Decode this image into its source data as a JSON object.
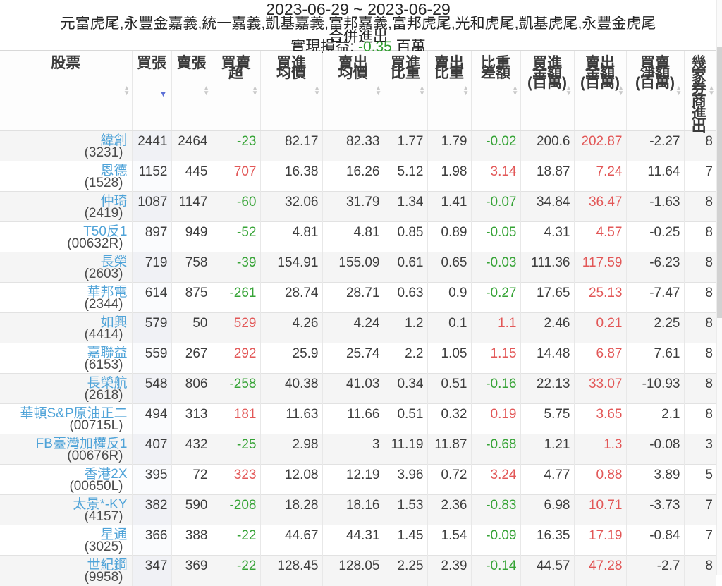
{
  "header": {
    "date_range": "2023-06-29 ~ 2023-06-29",
    "broker_list": "元富虎尾,永豐金嘉義,統一嘉義,凱基嘉義,富邦嘉義,富邦虎尾,光和虎尾,凱基虎尾,永豐金虎尾",
    "mode_label": "合併進出",
    "pnl_label": "實現損益:",
    "pnl_value": "-0.35",
    "pnl_unit": "百萬"
  },
  "colors": {
    "positive_red": "#e25757",
    "negative_green": "#36a336",
    "stock_link_blue": "#4fa3d8",
    "sort_active_blue": "#5b6fd6",
    "pnl_green": "#2f9e2f"
  },
  "sort_state": {
    "column": "buy_lots",
    "direction": "desc"
  },
  "table": {
    "columns": [
      {
        "id": "stock",
        "label": "股票",
        "lines": [
          "股票"
        ],
        "vertical": false
      },
      {
        "id": "buy_lots",
        "label": "買張",
        "lines": [
          "買張"
        ],
        "vertical": false
      },
      {
        "id": "sell_lots",
        "label": "賣張",
        "lines": [
          "賣張"
        ],
        "vertical": false
      },
      {
        "id": "net_lots",
        "label": "買賣超",
        "lines": [
          "買賣",
          "超"
        ],
        "vertical": false
      },
      {
        "id": "avg_buy_price",
        "label": "買進均價",
        "lines": [
          "買進",
          "均價"
        ],
        "vertical": false
      },
      {
        "id": "avg_sell_price",
        "label": "賣出均價",
        "lines": [
          "賣出",
          "均價"
        ],
        "vertical": false
      },
      {
        "id": "buy_weight",
        "label": "買進比重",
        "lines": [
          "買進",
          "比重"
        ],
        "vertical": false
      },
      {
        "id": "sell_weight",
        "label": "賣出比重",
        "lines": [
          "賣出",
          "比重"
        ],
        "vertical": false
      },
      {
        "id": "weight_diff",
        "label": "比重差額",
        "lines": [
          "比重",
          "差額"
        ],
        "vertical": false
      },
      {
        "id": "buy_amount",
        "label": "買進金額(百萬)",
        "lines": [
          "買進",
          "金額",
          "(百萬)"
        ],
        "vertical": false
      },
      {
        "id": "sell_amount",
        "label": "賣出金額(百萬)",
        "lines": [
          "賣出",
          "金額",
          "(百萬)"
        ],
        "vertical": false
      },
      {
        "id": "net_amount",
        "label": "買賣淨額(百萬)",
        "lines": [
          "買賣",
          "淨額",
          "(百萬)"
        ],
        "vertical": false
      },
      {
        "id": "broker_count",
        "label": "幾家券商進出",
        "lines": [
          "幾家券商進出"
        ],
        "vertical": true
      }
    ],
    "rows": [
      {
        "name": "緯創",
        "code": "(3231)",
        "buy_lots": "2441",
        "sell_lots": "2464",
        "net_lots": "-23",
        "avg_buy_price": "82.17",
        "avg_sell_price": "82.33",
        "buy_weight": "1.77",
        "sell_weight": "1.79",
        "weight_diff": "-0.02",
        "buy_amount": "200.6",
        "sell_amount": "202.87",
        "net_amount": "-2.27",
        "broker_count": "8"
      },
      {
        "name": "恩德",
        "code": "(1528)",
        "buy_lots": "1152",
        "sell_lots": "445",
        "net_lots": "707",
        "avg_buy_price": "16.38",
        "avg_sell_price": "16.26",
        "buy_weight": "5.12",
        "sell_weight": "1.98",
        "weight_diff": "3.14",
        "buy_amount": "18.87",
        "sell_amount": "7.24",
        "net_amount": "11.64",
        "broker_count": "7"
      },
      {
        "name": "仲琦",
        "code": "(2419)",
        "buy_lots": "1087",
        "sell_lots": "1147",
        "net_lots": "-60",
        "avg_buy_price": "32.06",
        "avg_sell_price": "31.79",
        "buy_weight": "1.34",
        "sell_weight": "1.41",
        "weight_diff": "-0.07",
        "buy_amount": "34.84",
        "sell_amount": "36.47",
        "net_amount": "-1.63",
        "broker_count": "8"
      },
      {
        "name": "T50反1",
        "code": "(00632R)",
        "buy_lots": "897",
        "sell_lots": "949",
        "net_lots": "-52",
        "avg_buy_price": "4.81",
        "avg_sell_price": "4.81",
        "buy_weight": "0.85",
        "sell_weight": "0.89",
        "weight_diff": "-0.05",
        "buy_amount": "4.31",
        "sell_amount": "4.57",
        "net_amount": "-0.25",
        "broker_count": "8"
      },
      {
        "name": "長榮",
        "code": "(2603)",
        "buy_lots": "719",
        "sell_lots": "758",
        "net_lots": "-39",
        "avg_buy_price": "154.91",
        "avg_sell_price": "155.09",
        "buy_weight": "0.61",
        "sell_weight": "0.65",
        "weight_diff": "-0.03",
        "buy_amount": "111.36",
        "sell_amount": "117.59",
        "net_amount": "-6.23",
        "broker_count": "8"
      },
      {
        "name": "華邦電",
        "code": "(2344)",
        "buy_lots": "614",
        "sell_lots": "875",
        "net_lots": "-261",
        "avg_buy_price": "28.74",
        "avg_sell_price": "28.71",
        "buy_weight": "0.63",
        "sell_weight": "0.9",
        "weight_diff": "-0.27",
        "buy_amount": "17.65",
        "sell_amount": "25.13",
        "net_amount": "-7.47",
        "broker_count": "8"
      },
      {
        "name": "如興",
        "code": "(4414)",
        "buy_lots": "579",
        "sell_lots": "50",
        "net_lots": "529",
        "avg_buy_price": "4.26",
        "avg_sell_price": "4.24",
        "buy_weight": "1.2",
        "sell_weight": "0.1",
        "weight_diff": "1.1",
        "buy_amount": "2.46",
        "sell_amount": "0.21",
        "net_amount": "2.25",
        "broker_count": "8"
      },
      {
        "name": "嘉聯益",
        "code": "(6153)",
        "buy_lots": "559",
        "sell_lots": "267",
        "net_lots": "292",
        "avg_buy_price": "25.9",
        "avg_sell_price": "25.74",
        "buy_weight": "2.2",
        "sell_weight": "1.05",
        "weight_diff": "1.15",
        "buy_amount": "14.48",
        "sell_amount": "6.87",
        "net_amount": "7.61",
        "broker_count": "8"
      },
      {
        "name": "長榮航",
        "code": "(2618)",
        "buy_lots": "548",
        "sell_lots": "806",
        "net_lots": "-258",
        "avg_buy_price": "40.38",
        "avg_sell_price": "41.03",
        "buy_weight": "0.34",
        "sell_weight": "0.51",
        "weight_diff": "-0.16",
        "buy_amount": "22.13",
        "sell_amount": "33.07",
        "net_amount": "-10.93",
        "broker_count": "8"
      },
      {
        "name": "華頓S&P原油正二",
        "code": "(00715L)",
        "buy_lots": "494",
        "sell_lots": "313",
        "net_lots": "181",
        "avg_buy_price": "11.63",
        "avg_sell_price": "11.66",
        "buy_weight": "0.51",
        "sell_weight": "0.32",
        "weight_diff": "0.19",
        "buy_amount": "5.75",
        "sell_amount": "3.65",
        "net_amount": "2.1",
        "broker_count": "8"
      },
      {
        "name": "FB臺灣加權反1",
        "code": "(00676R)",
        "buy_lots": "407",
        "sell_lots": "432",
        "net_lots": "-25",
        "avg_buy_price": "2.98",
        "avg_sell_price": "3",
        "buy_weight": "11.19",
        "sell_weight": "11.87",
        "weight_diff": "-0.68",
        "buy_amount": "1.21",
        "sell_amount": "1.3",
        "net_amount": "-0.08",
        "broker_count": "3"
      },
      {
        "name": "香港2X",
        "code": "(00650L)",
        "buy_lots": "395",
        "sell_lots": "72",
        "net_lots": "323",
        "avg_buy_price": "12.08",
        "avg_sell_price": "12.19",
        "buy_weight": "3.96",
        "sell_weight": "0.72",
        "weight_diff": "3.24",
        "buy_amount": "4.77",
        "sell_amount": "0.88",
        "net_amount": "3.89",
        "broker_count": "5"
      },
      {
        "name": "太景*-KY",
        "code": "(4157)",
        "buy_lots": "382",
        "sell_lots": "590",
        "net_lots": "-208",
        "avg_buy_price": "18.28",
        "avg_sell_price": "18.16",
        "buy_weight": "1.53",
        "sell_weight": "2.36",
        "weight_diff": "-0.83",
        "buy_amount": "6.98",
        "sell_amount": "10.71",
        "net_amount": "-3.73",
        "broker_count": "7"
      },
      {
        "name": "星通",
        "code": "(3025)",
        "buy_lots": "366",
        "sell_lots": "388",
        "net_lots": "-22",
        "avg_buy_price": "44.67",
        "avg_sell_price": "44.31",
        "buy_weight": "1.45",
        "sell_weight": "1.54",
        "weight_diff": "-0.09",
        "buy_amount": "16.35",
        "sell_amount": "17.19",
        "net_amount": "-0.84",
        "broker_count": "7"
      },
      {
        "name": "世紀鋼",
        "code": "(9958)",
        "buy_lots": "347",
        "sell_lots": "369",
        "net_lots": "-22",
        "avg_buy_price": "128.45",
        "avg_sell_price": "128.05",
        "buy_weight": "2.25",
        "sell_weight": "2.39",
        "weight_diff": "-0.14",
        "buy_amount": "44.57",
        "sell_amount": "47.28",
        "net_amount": "-2.7",
        "broker_count": "8"
      }
    ]
  }
}
